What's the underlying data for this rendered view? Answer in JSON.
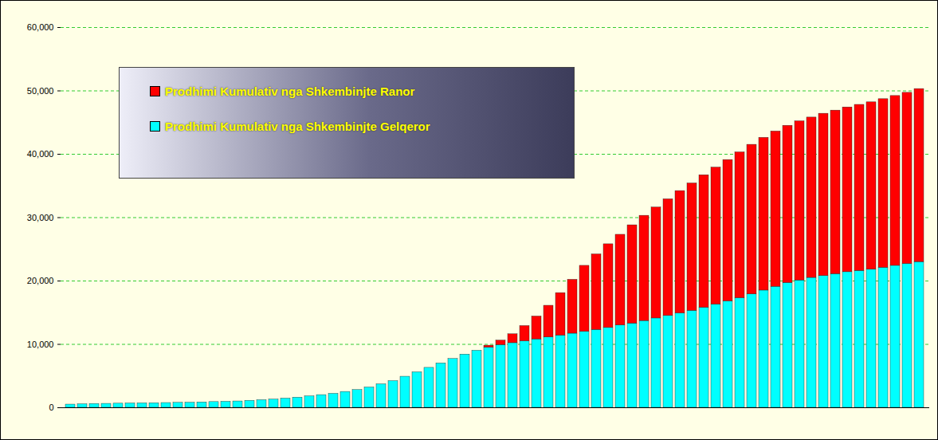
{
  "chart_data": {
    "type": "bar",
    "stacked": true,
    "categories": [
      null,
      null,
      null,
      null,
      null,
      null,
      null,
      null,
      null,
      null,
      null,
      null,
      null,
      null,
      null,
      null,
      null,
      null,
      null,
      null,
      null,
      null,
      null,
      null,
      null,
      null,
      null,
      null,
      null,
      null,
      null,
      null,
      null,
      null,
      null,
      null,
      null,
      null,
      null,
      null,
      null,
      null,
      null,
      null,
      null,
      null,
      null,
      null,
      null,
      null,
      null,
      null,
      null,
      null,
      null,
      null,
      null,
      null,
      null,
      null,
      null,
      null,
      null,
      null,
      null,
      null,
      null,
      null,
      null,
      null,
      null,
      null
    ],
    "series": [
      {
        "name": "Prodhimi Kumulativ nga Shkembinjte Gelqeror",
        "color": "#00ffff",
        "values": [
          500,
          550,
          600,
          620,
          650,
          680,
          700,
          720,
          750,
          780,
          800,
          850,
          900,
          950,
          1000,
          1100,
          1200,
          1300,
          1450,
          1600,
          1800,
          2000,
          2200,
          2500,
          2800,
          3200,
          3700,
          4200,
          4900,
          5600,
          6300,
          7000,
          7700,
          8400,
          9000,
          9500,
          9900,
          10200,
          10500,
          10800,
          11100,
          11400,
          11700,
          12000,
          12300,
          12600,
          13000,
          13300,
          13700,
          14100,
          14500,
          14900,
          15300,
          15800,
          16300,
          16800,
          17300,
          17900,
          18500,
          19100,
          19700,
          20100,
          20500,
          20800,
          21100,
          21400,
          21600,
          21800,
          22100,
          22400,
          22700,
          23000
        ]
      },
      {
        "name": "Prodhimi Kumulativ nga Shkembinjte Ranor",
        "color": "#ff0000",
        "values": [
          0,
          0,
          0,
          0,
          0,
          0,
          0,
          0,
          0,
          0,
          0,
          0,
          0,
          0,
          0,
          0,
          0,
          0,
          0,
          0,
          0,
          0,
          0,
          0,
          0,
          0,
          0,
          0,
          0,
          0,
          0,
          0,
          0,
          0,
          0,
          300,
          700,
          1400,
          2400,
          3600,
          5000,
          6700,
          8500,
          10400,
          11900,
          13200,
          14300,
          15500,
          16600,
          17500,
          18400,
          19300,
          20100,
          20900,
          21600,
          22300,
          23000,
          23600,
          24100,
          24500,
          24800,
          25100,
          25300,
          25600,
          25800,
          26000,
          26200,
          26400,
          26600,
          26800,
          27000,
          27300
        ]
      }
    ],
    "ylim": [
      0,
      60000
    ],
    "yticks": [
      0,
      10000,
      20000,
      30000,
      40000,
      50000,
      60000
    ],
    "grid": true,
    "legend": "upper left",
    "tick_labels": "y"
  }
}
